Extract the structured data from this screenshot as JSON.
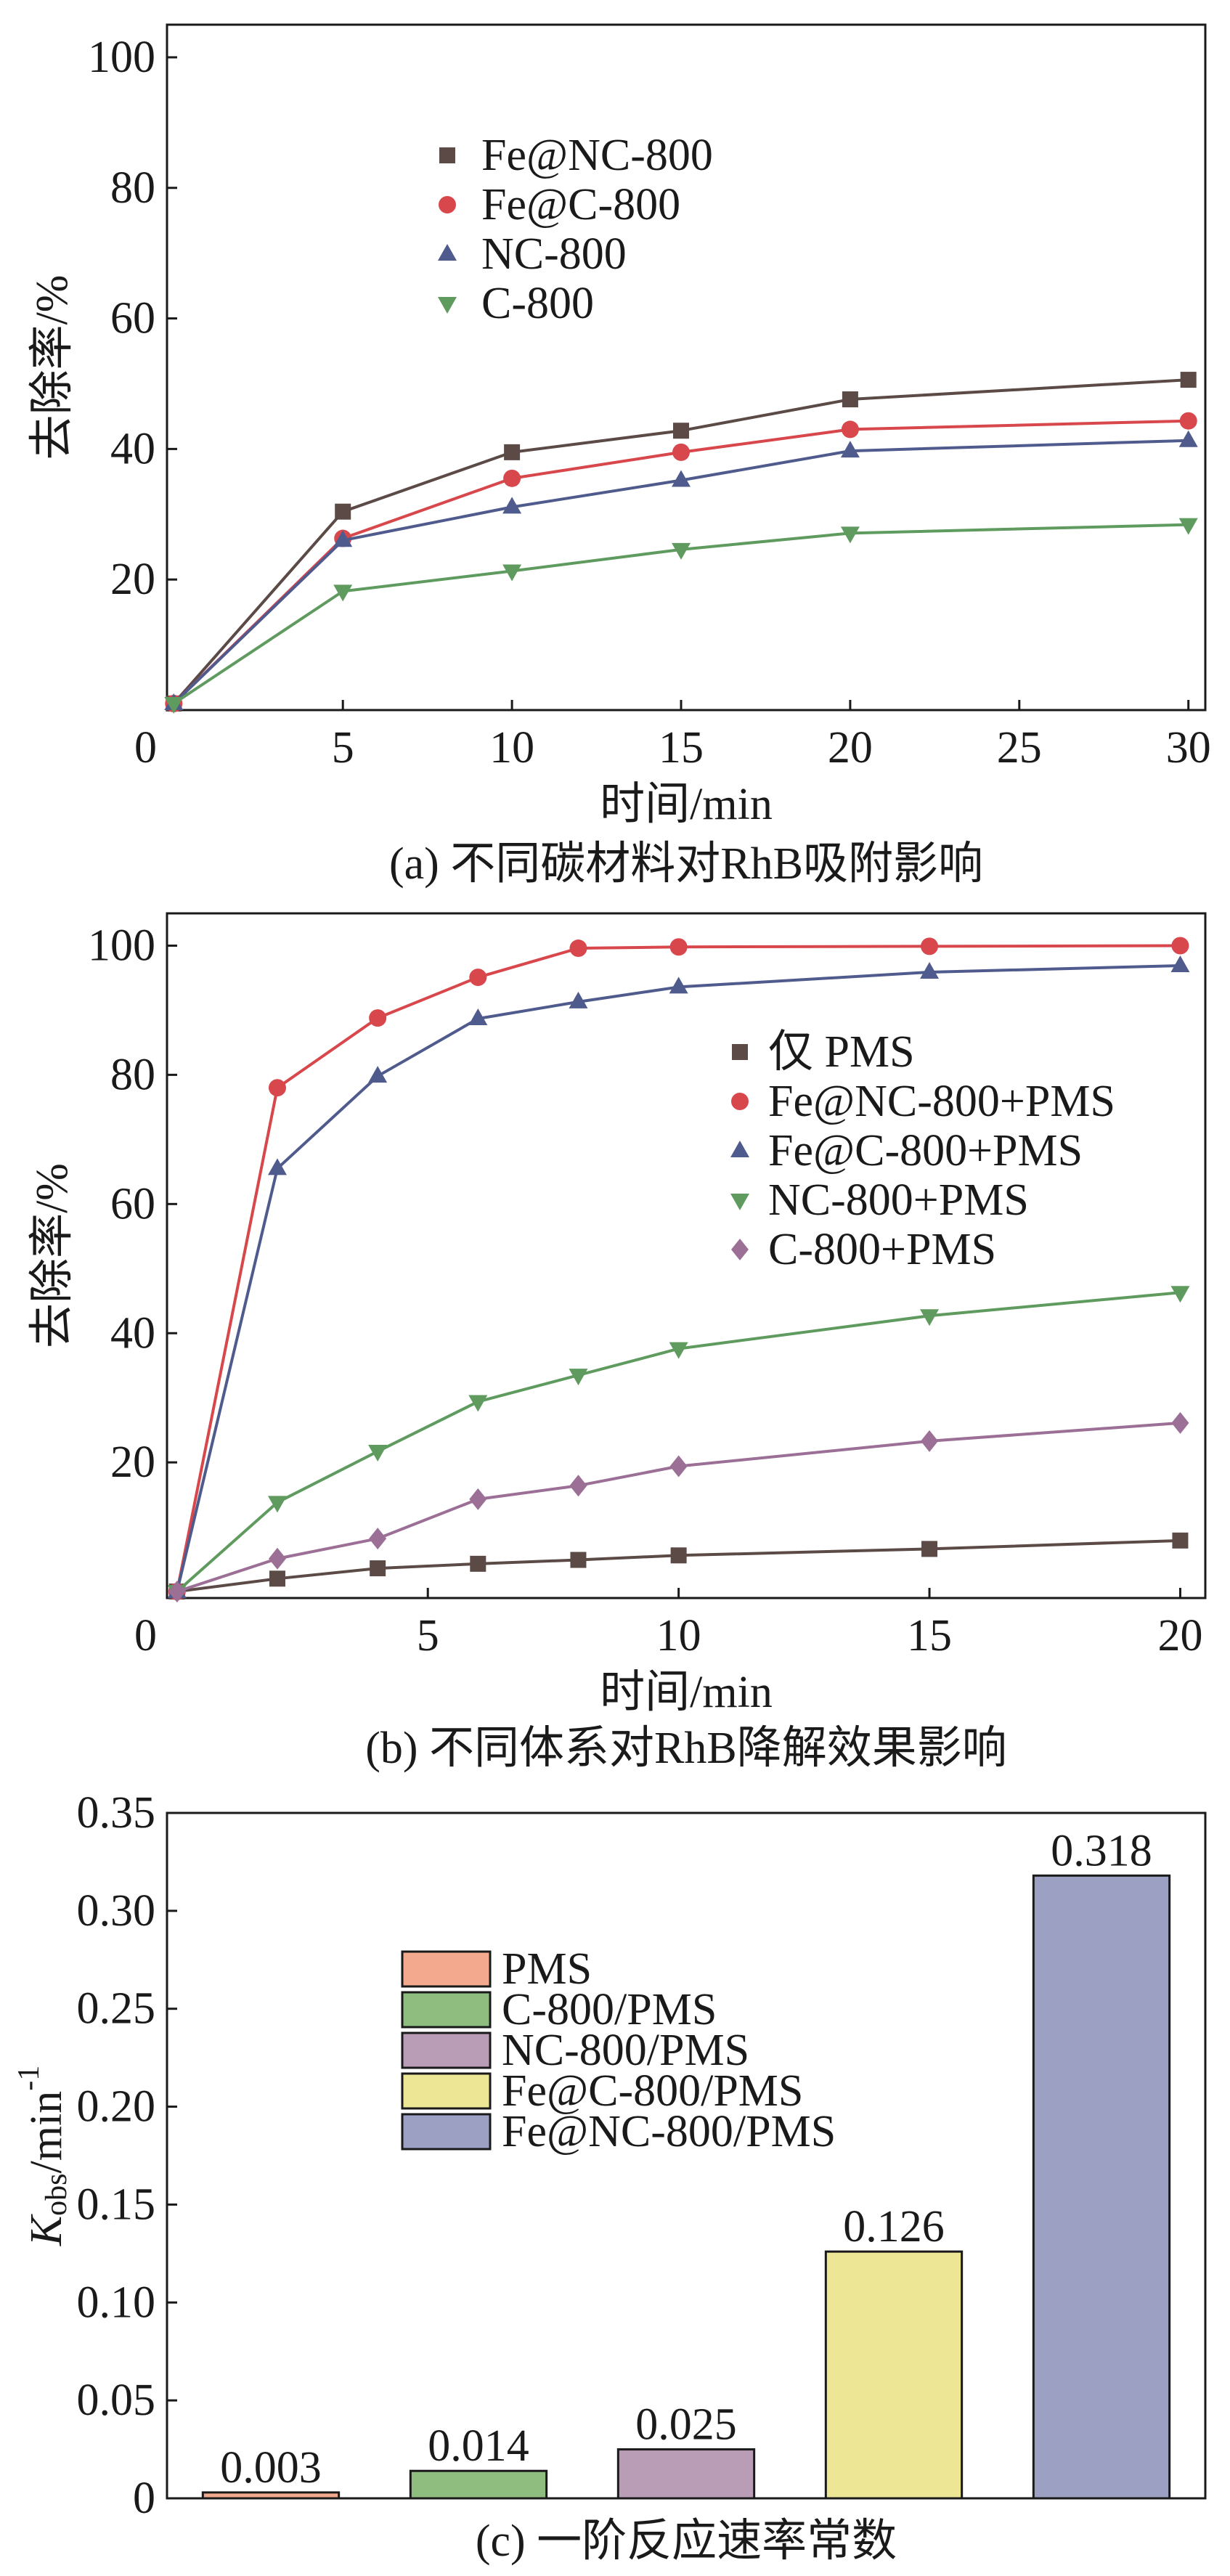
{
  "chart_data": [
    {
      "type": "line",
      "caption": "(a) 不同碳材料对RhB吸附影响",
      "xlabel": "时间/min",
      "ylabel": "去除率/%",
      "xlim": [
        -0.2,
        30.5
      ],
      "ylim": [
        0,
        105
      ],
      "xticks": [
        0,
        5,
        10,
        15,
        20,
        25,
        30
      ],
      "xtick_labels": [
        "0",
        "5",
        "10",
        "15",
        "20",
        "25",
        "30"
      ],
      "yticks": [
        20,
        40,
        60,
        80,
        100
      ],
      "ytick_labels": [
        "20",
        "40",
        "60",
        "80",
        "100"
      ],
      "grid": false,
      "legend": "top-left",
      "series": [
        {
          "name": "Fe@NC-800",
          "marker": "square",
          "color": "#5b4a46",
          "x": [
            0,
            5,
            10,
            15,
            20,
            30
          ],
          "y": [
            1.0,
            30.4,
            39.5,
            42.8,
            47.6,
            50.6
          ]
        },
        {
          "name": "Fe@C-800",
          "marker": "circle",
          "color": "#d8474c",
          "x": [
            0,
            5,
            10,
            15,
            20,
            30
          ],
          "y": [
            1.0,
            26.3,
            35.5,
            39.5,
            43.0,
            44.3
          ]
        },
        {
          "name": "NC-800",
          "marker": "triangle-up",
          "color": "#505b8d",
          "x": [
            0,
            5,
            10,
            15,
            20,
            30
          ],
          "y": [
            1.0,
            26.0,
            31.1,
            35.2,
            39.7,
            41.3
          ]
        },
        {
          "name": "C-800",
          "marker": "triangle-down",
          "color": "#5f9b5f",
          "x": [
            0,
            5,
            10,
            15,
            20,
            30
          ],
          "y": [
            1.0,
            18.2,
            21.3,
            24.6,
            27.1,
            28.4
          ]
        }
      ]
    },
    {
      "type": "line",
      "caption": "(b) 不同体系对RhB降解效果影响",
      "xlabel": "时间/min",
      "ylabel": "去除率/%",
      "xlim": [
        -0.2,
        20.5
      ],
      "ylim": [
        -1,
        105
      ],
      "xticks": [
        0,
        5,
        10,
        15,
        20
      ],
      "xtick_labels": [
        "0",
        "5",
        "10",
        "15",
        "20"
      ],
      "yticks": [
        20,
        40,
        60,
        80,
        100
      ],
      "ytick_labels": [
        "20",
        "40",
        "60",
        "80",
        "100"
      ],
      "grid": false,
      "legend": "center-right",
      "series": [
        {
          "name": "仅 PMS",
          "marker": "square",
          "color": "#5b4a46",
          "x": [
            0,
            2,
            4,
            6,
            8,
            10,
            15,
            20
          ],
          "y": [
            0,
            2.0,
            3.6,
            4.3,
            4.9,
            5.6,
            6.6,
            7.9
          ]
        },
        {
          "name": "Fe@NC-800+PMS",
          "marker": "circle",
          "color": "#d8474c",
          "x": [
            0,
            2,
            4,
            6,
            8,
            10,
            15,
            20
          ],
          "y": [
            0,
            78.0,
            88.8,
            95.1,
            99.6,
            99.8,
            99.9,
            100.0
          ]
        },
        {
          "name": "Fe@C-800+PMS",
          "marker": "triangle-up",
          "color": "#505b8d",
          "x": [
            0,
            2,
            4,
            6,
            8,
            10,
            15,
            20
          ],
          "y": [
            0,
            65.5,
            79.8,
            88.7,
            91.3,
            93.6,
            95.9,
            96.9
          ]
        },
        {
          "name": "NC-800+PMS",
          "marker": "triangle-down",
          "color": "#5f9b5f",
          "x": [
            0,
            2,
            4,
            6,
            8,
            10,
            15,
            20
          ],
          "y": [
            0,
            13.8,
            21.7,
            29.4,
            33.5,
            37.6,
            42.7,
            46.3
          ]
        },
        {
          "name": "C-800+PMS",
          "marker": "diamond",
          "color": "#9b6f96",
          "x": [
            0,
            2,
            4,
            6,
            8,
            10,
            15,
            20
          ],
          "y": [
            0,
            5.1,
            8.2,
            14.3,
            16.4,
            19.4,
            23.3,
            26.1
          ]
        }
      ]
    },
    {
      "type": "bar",
      "caption": "(c) 一阶反应速率常数",
      "ylabel": {
        "symbol": "K",
        "subscript": "obs",
        "unit": "/min",
        "superscript": "-1"
      },
      "ylim": [
        0,
        0.35
      ],
      "yticks": [
        0,
        0.05,
        0.1,
        0.15,
        0.2,
        0.25,
        0.3,
        0.35
      ],
      "ytick_labels": [
        "0",
        "0.05",
        "0.10",
        "0.15",
        "0.20",
        "0.25",
        "0.30",
        "0.35"
      ],
      "grid": false,
      "legend": "upper-left",
      "categories": [
        "PMS",
        "C-800/PMS",
        "NC-800/PMS",
        "Fe@C-800/PMS",
        "Fe@NC-800/PMS"
      ],
      "values": [
        0.003,
        0.014,
        0.025,
        0.126,
        0.318
      ],
      "colors": [
        "#f2a98e",
        "#8fbd80",
        "#b99cb5",
        "#ede694",
        "#9ca0c3"
      ]
    }
  ]
}
